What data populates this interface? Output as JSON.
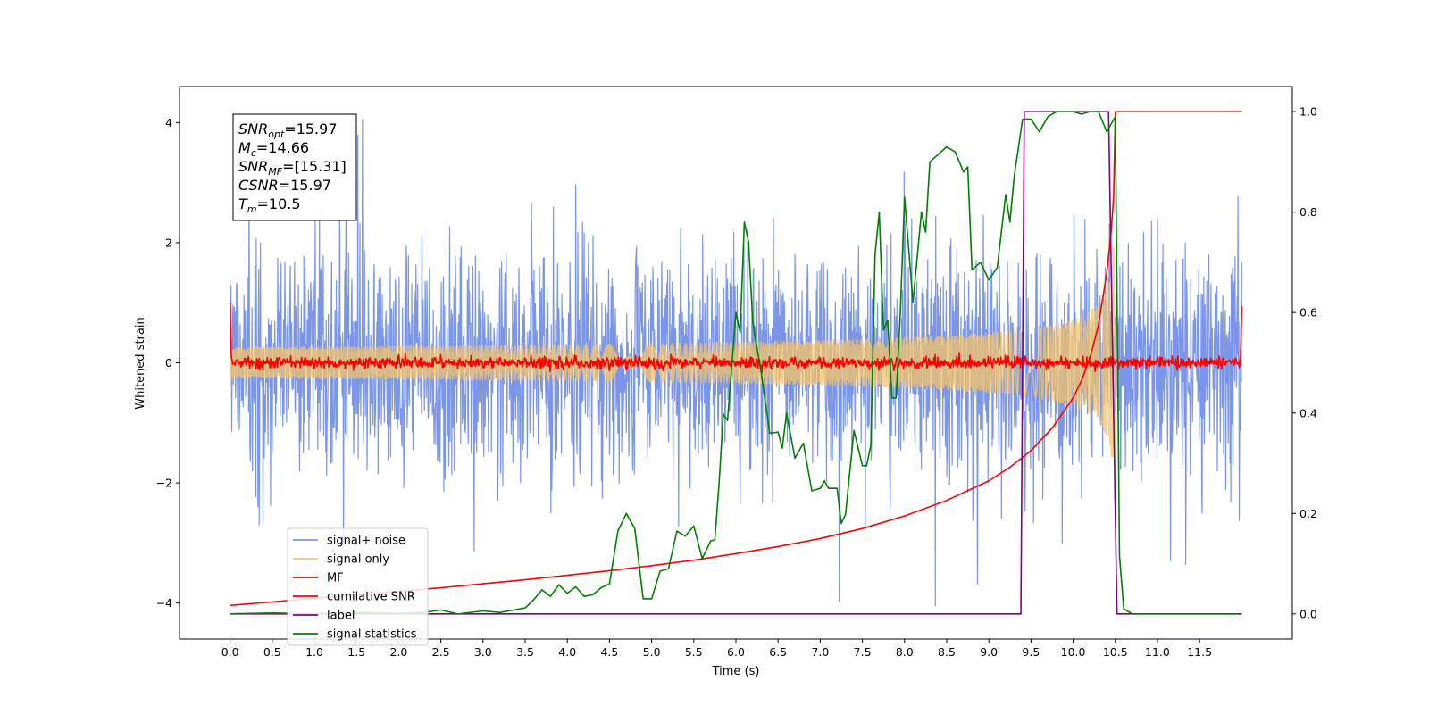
{
  "chart_data": {
    "type": "line",
    "xlabel": "Time (s)",
    "ylabel": "Whitened strain",
    "xlim": [
      -0.6,
      12.6
    ],
    "ylim": [
      -4.6,
      4.6
    ],
    "y2lim": [
      -0.05,
      1.05
    ],
    "x_ticks": [
      0.0,
      0.5,
      1.0,
      1.5,
      2.0,
      2.5,
      3.0,
      3.5,
      4.0,
      4.5,
      5.0,
      5.5,
      6.0,
      6.5,
      7.0,
      7.5,
      8.0,
      8.5,
      9.0,
      9.5,
      10.0,
      10.5,
      11.0,
      11.5
    ],
    "x_tick_labels": [
      "0.0",
      "0.5",
      "1.0",
      "1.5",
      "2.0",
      "2.5",
      "3.0",
      "3.5",
      "4.0",
      "4.5",
      "5.0",
      "5.5",
      "6.0",
      "6.5",
      "7.0",
      "7.5",
      "8.0",
      "8.5",
      "9.0",
      "9.5",
      "10.0",
      "10.5",
      "11.0",
      "11.5"
    ],
    "y_ticks": [
      -4,
      -2,
      0,
      2,
      4
    ],
    "y_tick_labels": [
      "−4",
      "−2",
      "0",
      "2",
      "4"
    ],
    "y2_ticks": [
      0.0,
      0.2,
      0.4,
      0.6,
      0.8,
      1.0
    ],
    "y2_tick_labels": [
      "0.0",
      "0.2",
      "0.4",
      "0.6",
      "0.8",
      "1.0"
    ],
    "grid": false,
    "legend_position": "lower-left",
    "info_box": {
      "lines": [
        {
          "base": "SNR",
          "sub": "opt",
          "rest": "=15.97"
        },
        {
          "base": "M",
          "sub": "c",
          "rest": "=14.66"
        },
        {
          "base": "SNR",
          "sub": "MF",
          "rest": "=[15.31]"
        },
        {
          "base": "CSNR",
          "sub": "",
          "rest": "=15.97"
        },
        {
          "base": "T",
          "sub": "m",
          "rest": "=10.5"
        }
      ]
    },
    "series": [
      {
        "name": "signal+ noise",
        "color": "#7b96e8",
        "axis": "left",
        "kind": "noise",
        "t_start": 0.0,
        "t_end": 12.0,
        "sigma": 1.0,
        "seed": 7
      },
      {
        "name": "signal only",
        "color": "#f5c46a",
        "axis": "left",
        "kind": "chirp",
        "t_start": 0.0,
        "t_end": 10.5,
        "t_merger": 10.5,
        "peak_amplitude": 2.7
      },
      {
        "name": "MF",
        "color": "#ff0000",
        "axis": "left",
        "kind": "mf",
        "t_start": 0.0,
        "t_end": 12.0,
        "sigma": 0.05,
        "start_value": 1.0,
        "end_value": 0.95,
        "seed": 13
      },
      {
        "name": "cumilative SNR",
        "color": "#ff0000",
        "axis": "right",
        "kind": "line",
        "x": [
          0.0,
          0.5,
          1.0,
          1.5,
          2.0,
          2.5,
          3.0,
          3.5,
          4.0,
          4.5,
          5.0,
          5.5,
          6.0,
          6.5,
          7.0,
          7.5,
          8.0,
          8.5,
          9.0,
          9.25,
          9.5,
          9.75,
          10.0,
          10.1,
          10.2,
          10.3,
          10.4,
          10.45,
          10.48,
          10.5,
          12.0
        ],
        "y": [
          0.017,
          0.024,
          0.031,
          0.038,
          0.045,
          0.052,
          0.06,
          0.068,
          0.077,
          0.086,
          0.096,
          0.107,
          0.12,
          0.134,
          0.15,
          0.17,
          0.195,
          0.226,
          0.265,
          0.292,
          0.325,
          0.37,
          0.43,
          0.465,
          0.51,
          0.575,
          0.68,
          0.76,
          0.83,
          1.0,
          1.0
        ]
      },
      {
        "name": "label",
        "color": "#800080",
        "axis": "right",
        "kind": "line",
        "x": [
          0.0,
          9.38,
          9.42,
          10.42,
          10.52,
          12.0
        ],
        "y": [
          0.0,
          0.0,
          1.0,
          1.0,
          0.0,
          0.0
        ]
      },
      {
        "name": "signal statistics",
        "color": "#008000",
        "axis": "right",
        "kind": "line",
        "x": [
          0.0,
          0.5,
          1.0,
          1.5,
          2.0,
          2.3,
          2.5,
          2.7,
          3.0,
          3.2,
          3.5,
          3.6,
          3.7,
          3.8,
          3.9,
          4.0,
          4.1,
          4.2,
          4.3,
          4.4,
          4.5,
          4.6,
          4.7,
          4.8,
          4.9,
          5.0,
          5.1,
          5.2,
          5.3,
          5.4,
          5.5,
          5.6,
          5.7,
          5.75,
          5.8,
          5.85,
          5.9,
          6.0,
          6.05,
          6.1,
          6.15,
          6.2,
          6.3,
          6.4,
          6.5,
          6.55,
          6.6,
          6.7,
          6.8,
          6.9,
          7.0,
          7.05,
          7.1,
          7.2,
          7.25,
          7.3,
          7.4,
          7.5,
          7.55,
          7.6,
          7.65,
          7.7,
          7.75,
          7.8,
          7.85,
          7.9,
          7.95,
          8.0,
          8.1,
          8.2,
          8.25,
          8.3,
          8.4,
          8.5,
          8.6,
          8.7,
          8.75,
          8.8,
          8.9,
          9.0,
          9.1,
          9.2,
          9.25,
          9.3,
          9.4,
          9.5,
          9.6,
          9.7,
          9.8,
          9.9,
          10.0,
          10.1,
          10.2,
          10.3,
          10.4,
          10.5,
          10.55,
          10.6,
          10.7,
          10.8,
          11.0,
          11.5,
          11.95
        ],
        "y": [
          0.0,
          0.002,
          0.0,
          0.003,
          0.001,
          0.003,
          0.008,
          0.0,
          0.006,
          0.003,
          0.012,
          0.028,
          0.048,
          0.035,
          0.058,
          0.041,
          0.054,
          0.035,
          0.038,
          0.052,
          0.06,
          0.165,
          0.2,
          0.17,
          0.03,
          0.03,
          0.085,
          0.09,
          0.165,
          0.155,
          0.175,
          0.11,
          0.145,
          0.148,
          0.26,
          0.398,
          0.385,
          0.6,
          0.56,
          0.78,
          0.74,
          0.58,
          0.48,
          0.36,
          0.362,
          0.33,
          0.4,
          0.31,
          0.34,
          0.245,
          0.25,
          0.265,
          0.25,
          0.25,
          0.18,
          0.198,
          0.365,
          0.295,
          0.295,
          0.335,
          0.715,
          0.8,
          0.565,
          0.585,
          0.43,
          0.43,
          0.6,
          0.83,
          0.62,
          0.8,
          0.76,
          0.9,
          0.915,
          0.93,
          0.92,
          0.88,
          0.89,
          0.685,
          0.7,
          0.665,
          0.69,
          0.835,
          0.78,
          0.87,
          0.985,
          0.985,
          0.96,
          0.99,
          1.0,
          1.0,
          1.0,
          0.995,
          1.0,
          1.0,
          0.96,
          0.99,
          0.115,
          0.01,
          0.0,
          0.0,
          0.0,
          0.0,
          0.0
        ]
      }
    ]
  }
}
